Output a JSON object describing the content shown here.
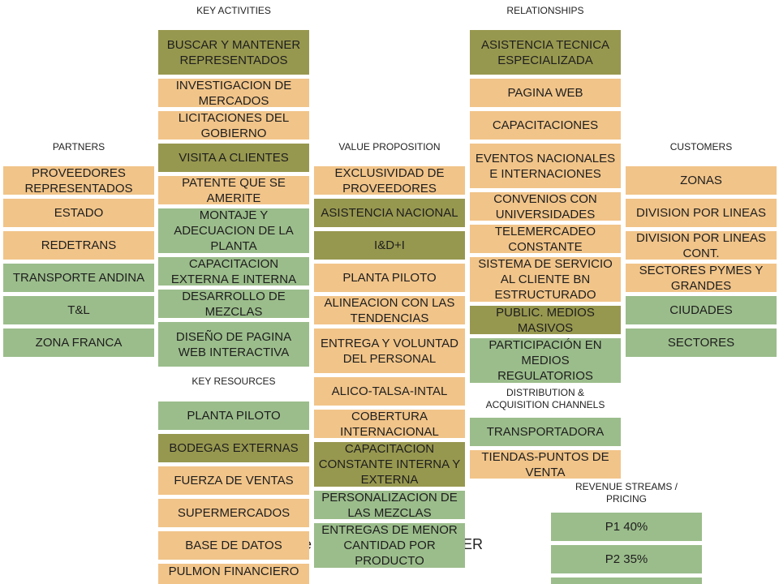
{
  "colors": {
    "olive": "#97984f",
    "green": "#9bbd8b",
    "tan": "#f1c489"
  },
  "headers": {
    "key_activities": "KEY ACTIVITIES",
    "relationships": "RELATIONSHIPS",
    "partners": "PARTNERS",
    "value_proposition": "VALUE PROPOSITION",
    "customers": "CUSTOMERS",
    "key_resources": "KEY RESOURCES",
    "distribution": "DISTRIBUTION  &\nACQUISITION  CHANNELS",
    "revenue": "REVENUE STREAMS  /\nPRICING"
  },
  "key_activities": [
    "BUSCAR Y MANTENER REPRESENTADOS",
    "INVESTIGACION DE MERCADOS",
    "LICITACIONES DEL GOBIERNO",
    "VISITA A CLIENTES",
    "PATENTE QUE SE AMERITE",
    "MONTAJE Y ADECUACION DE LA PLANTA",
    "CAPACITACION EXTERNA E INTERNA",
    "DESARROLLO DE MEZCLAS",
    "DISEÑO DE PAGINA WEB INTERACTIVA"
  ],
  "key_resources": [
    "PLANTA PILOTO",
    "BODEGAS EXTERNAS",
    "FUERZA DE VENTAS",
    "SUPERMERCADOS",
    "BASE DE DATOS",
    "PULMON FINANCIERO"
  ],
  "relationships": [
    "ASISTENCIA TECNICA ESPECIALIZADA",
    "PAGINA WEB",
    "CAPACITACIONES",
    "EVENTOS NACIONALES E INTERNACIONES",
    "CONVENIOS CON UNIVERSIDADES",
    "TELEMERCADEO CONSTANTE",
    "SISTEMA DE SERVICIO AL CLIENTE BN ESTRUCTURADO",
    "PUBLIC. MEDIOS MASIVOS",
    "PARTICIPACIÓN EN MEDIOS REGULATORIOS"
  ],
  "partners": [
    "PROVEEDORES REPRESENTADOS",
    "ESTADO",
    "REDETRANS",
    "TRANSPORTE ANDINA",
    "T&L",
    "ZONA FRANCA"
  ],
  "value_proposition": [
    "EXCLUSIVIDAD DE PROVEEDORES",
    "ASISTENCIA NACIONAL",
    "I&D+I",
    "PLANTA PILOTO",
    "ALINEACION CON LAS TENDENCIAS",
    "ENTREGA Y VOLUNTAD DEL PERSONAL",
    "ALICO-TALSA-INTAL",
    "COBERTURA INTERNACIONAL",
    "CAPACITACION CONSTANTE INTERNA Y EXTERNA",
    "PERSONALIZACION DE LAS MEZCLAS",
    "ENTREGAS DE MENOR CANTIDAD POR PRODUCTO"
  ],
  "customers": [
    "ZONAS",
    "DIVISION POR LINEAS",
    "DIVISION POR LINEAS CONT.",
    "SECTORES PYMES Y GRANDES",
    "CIUDADES",
    "SECTORES"
  ],
  "channels": [
    "TRANSPORTADORA",
    "TIENDAS-PUNTOS DE VENTA"
  ],
  "revenue": [
    "P1 40%",
    "P2 35%"
  ],
  "background_fragments": {
    "left": "re",
    "right": "ER"
  }
}
